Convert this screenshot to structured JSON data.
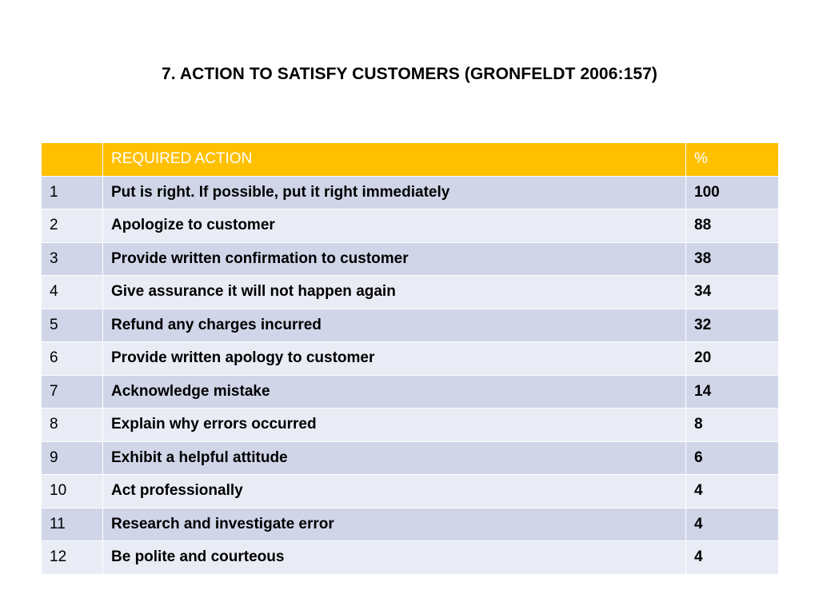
{
  "title": "7. ACTION TO SATISFY CUSTOMERS (GRONFELDT 2006:157)",
  "table": {
    "headers": [
      "",
      "REQUIRED ACTION",
      "%"
    ],
    "rows": [
      {
        "num": "1",
        "action": "Put is right. If possible, put it right immediately",
        "pct": "100"
      },
      {
        "num": "2",
        "action": "Apologize to customer",
        "pct": "88"
      },
      {
        "num": "3",
        "action": "Provide written confirmation to customer",
        "pct": "38"
      },
      {
        "num": "4",
        "action": "Give assurance it will not happen again",
        "pct": "34"
      },
      {
        "num": "5",
        "action": "Refund any charges incurred",
        "pct": "32"
      },
      {
        "num": "6",
        "action": "Provide written apology to customer",
        "pct": "20"
      },
      {
        "num": "7",
        "action": "Acknowledge mistake",
        "pct": "14"
      },
      {
        "num": "8",
        "action": "Explain why errors occurred",
        "pct": "8"
      },
      {
        "num": "9",
        "action": "Exhibit a helpful attitude",
        "pct": "6"
      },
      {
        "num": "10",
        "action": "Act professionally",
        "pct": "4"
      },
      {
        "num": "11",
        "action": "Research and investigate error",
        "pct": "4"
      },
      {
        "num": "12",
        "action": "Be polite and  courteous",
        "pct": "4"
      }
    ]
  },
  "colors": {
    "header_bg": "#ffc000",
    "header_text": "#ffffff",
    "row_odd": "#d0d5e8",
    "row_even": "#e9ebf5"
  }
}
